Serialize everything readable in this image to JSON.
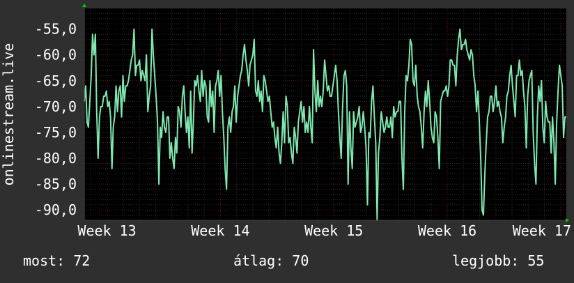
{
  "colors": {
    "background": "#2f2f2f",
    "plot_background": "#000000",
    "series": "#7fe8b0",
    "major_grid": "#5a1a1a",
    "minor_grid": "#2a2a2a",
    "axis_arrow": "#00cc00",
    "text": "#ffffff"
  },
  "stats": {
    "current": "most: 72",
    "average": "átlag: 70",
    "best": "legjobb: 55"
  },
  "chart_data": {
    "type": "line",
    "title": "",
    "ylabel": "onlinestream.live",
    "xlabel": "",
    "ylim": [
      -92,
      -51
    ],
    "xlim": [
      12.8,
      17.05
    ],
    "y_ticks": [
      -55,
      -60,
      -65,
      -70,
      -75,
      -80,
      -85,
      -90
    ],
    "y_tick_labels": [
      "-55,0",
      "-60,0",
      "-65,0",
      "-70,0",
      "-75,0",
      "-80,0",
      "-85,0",
      "-90,0"
    ],
    "x_ticks": [
      13,
      14,
      15,
      16,
      17
    ],
    "x_tick_labels": [
      "Week 13",
      "Week 14",
      "Week 15",
      "Week 16",
      "Week 17"
    ],
    "grid": true,
    "series": [
      {
        "values": [
          -69,
          -66,
          -73,
          -74,
          -69,
          -64,
          -56,
          -60,
          -56,
          -71,
          -80,
          -72,
          -70,
          -70,
          -68,
          -68,
          -67,
          -70,
          -69,
          -72,
          -82,
          -74,
          -72,
          -66,
          -71,
          -67,
          -66,
          -72,
          -64,
          -69,
          -66,
          -66,
          -65,
          -63,
          -61,
          -60,
          -55,
          -64,
          -62,
          -62,
          -61,
          -65,
          -63,
          -64,
          -65,
          -60,
          -71,
          -68,
          -66,
          -55,
          -60,
          -64,
          -68,
          -73,
          -85,
          -74,
          -76,
          -71,
          -74,
          -75,
          -72,
          -72,
          -80,
          -77,
          -80,
          -82,
          -76,
          -79,
          -70,
          -71,
          -74,
          -68,
          -66,
          -71,
          -75,
          -72,
          -78,
          -67,
          -79,
          -73,
          -65,
          -66,
          -64,
          -67,
          -69,
          -63,
          -68,
          -65,
          -66,
          -72,
          -73,
          -65,
          -70,
          -67,
          -75,
          -66,
          -65,
          -63,
          -68,
          -64,
          -71,
          -76,
          -82,
          -86,
          -74,
          -72,
          -75,
          -71,
          -70,
          -66,
          -73,
          -68,
          -66,
          -64,
          -63,
          -60,
          -58,
          -61,
          -63,
          -66,
          -62,
          -61,
          -60,
          -57,
          -67,
          -68,
          -65,
          -69,
          -67,
          -71,
          -64,
          -65,
          -67,
          -69,
          -68,
          -71,
          -74,
          -73,
          -76,
          -78,
          -74,
          -79,
          -81,
          -77,
          -71,
          -77,
          -68,
          -70,
          -77,
          -76,
          -79,
          -81,
          -74,
          -76,
          -79,
          -73,
          -71,
          -69,
          -73,
          -70,
          -75,
          -73,
          -75,
          -70,
          -74,
          -77,
          -59,
          -67,
          -71,
          -65,
          -70,
          -68,
          -70,
          -67,
          -61,
          -64,
          -67,
          -66,
          -68,
          -68,
          -66,
          -64,
          -62,
          -65,
          -71,
          -76,
          -80,
          -70,
          -64,
          -63,
          -66,
          -85,
          -71,
          -78,
          -82,
          -71,
          -74,
          -73,
          -72,
          -70,
          -75,
          -74,
          -71,
          -74,
          -78,
          -89,
          -75,
          -76,
          -69,
          -66,
          -72,
          -77,
          -92,
          -79,
          -76,
          -71,
          -73,
          -75,
          -74,
          -72,
          -74,
          -74,
          -72,
          -76,
          -70,
          -72,
          -71,
          -71,
          -69,
          -69,
          -80,
          -86,
          -71,
          -64,
          -65,
          -62,
          -57,
          -58,
          -65,
          -66,
          -62,
          -68,
          -70,
          -71,
          -74,
          -78,
          -71,
          -67,
          -70,
          -65,
          -69,
          -74,
          -76,
          -77,
          -71,
          -72,
          -76,
          -82,
          -69,
          -68,
          -67,
          -67,
          -66,
          -68,
          -66,
          -61,
          -61,
          -62,
          -62,
          -66,
          -60,
          -57,
          -55,
          -59,
          -58,
          -58,
          -57,
          -59,
          -60,
          -61,
          -59,
          -60,
          -64,
          -66,
          -71,
          -67,
          -73,
          -80,
          -90,
          -91,
          -83,
          -77,
          -72,
          -71,
          -68,
          -68,
          -71,
          -69,
          -66,
          -70,
          -69,
          -71,
          -72,
          -77,
          -74,
          -72,
          -68,
          -67,
          -64,
          -62,
          -66,
          -69,
          -72,
          -64,
          -64,
          -61,
          -64,
          -63,
          -67,
          -70,
          -78,
          -68,
          -65,
          -64,
          -63,
          -75,
          -81,
          -85,
          -72,
          -66,
          -69,
          -65,
          -74,
          -77,
          -69,
          -72,
          -73,
          -73,
          -79,
          -72,
          -77,
          -85,
          -73,
          -67,
          -62,
          -64,
          -66,
          -76,
          -72,
          -72
        ]
      }
    ]
  }
}
